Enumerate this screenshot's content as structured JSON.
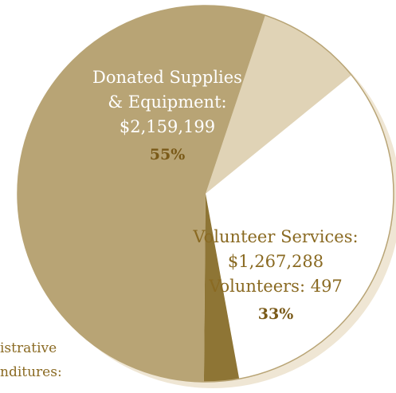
{
  "colors": {
    "donated": "#b8a475",
    "volunteer": "#ffffff",
    "administrative": "#8e7535",
    "other": "#e0d3b6",
    "shadow": "#efe6d4",
    "outline": "#b8a475"
  },
  "chart_data": {
    "type": "pie",
    "title": "",
    "slices": [
      {
        "key": "donated",
        "label_lines": [
          "Donated Supplies",
          "& Equipment:",
          "$2,159,199"
        ],
        "percent_label": "55%",
        "value": 55
      },
      {
        "key": "volunteer",
        "label_lines": [
          "Volunteer Services:",
          "$1,267,288",
          "Volunteers: 497"
        ],
        "percent_label": "33%",
        "value": 33
      },
      {
        "key": "administrative",
        "label_lines": [
          "istrative",
          "nditures:"
        ],
        "value": 3
      },
      {
        "key": "other",
        "label_lines": [],
        "value": 9
      }
    ]
  }
}
